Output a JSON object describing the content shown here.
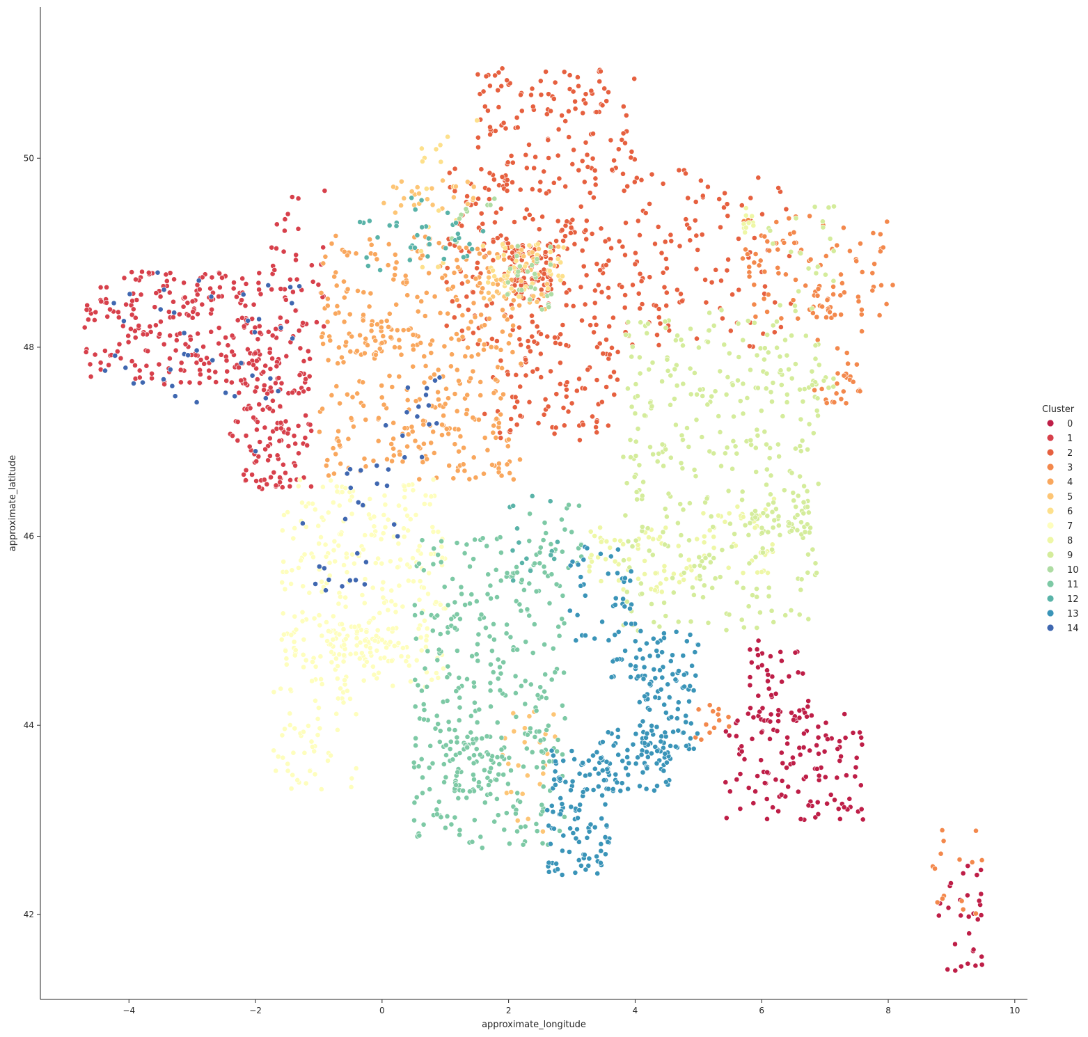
{
  "chart_data": {
    "type": "scatter",
    "title": "",
    "xlabel": "approximate_longitude",
    "ylabel": "approximate_latitude",
    "xlim": [
      -5.4,
      10.2
    ],
    "ylim": [
      41.1,
      51.6
    ],
    "xticks": [
      -4,
      -2,
      0,
      2,
      4,
      6,
      8,
      10
    ],
    "xtick_labels": [
      "−4",
      "−2",
      "0",
      "2",
      "4",
      "6",
      "8",
      "10"
    ],
    "yticks": [
      42,
      44,
      46,
      48,
      50
    ],
    "ytick_labels": [
      "42",
      "44",
      "46",
      "48",
      "50"
    ],
    "grid": false,
    "legend": {
      "title": "Cluster",
      "placement": "right",
      "entries": [
        "0",
        "1",
        "2",
        "3",
        "4",
        "5",
        "6",
        "7",
        "8",
        "9",
        "10",
        "11",
        "12",
        "13",
        "14"
      ]
    },
    "colors": [
      "#be1e47",
      "#d7404b",
      "#e6603f",
      "#f3884c",
      "#f9a75d",
      "#fdc575",
      "#fde08b",
      "#fefebd",
      "#eef7a6",
      "#d4ec9b",
      "#aedca3",
      "#7dc9a5",
      "#59b3a8",
      "#3a94b8",
      "#3f67b0"
    ],
    "series": [
      {
        "name": "0",
        "regions": [
          [
            5.4,
            43.0,
            7.6,
            44.2,
            120
          ],
          [
            5.6,
            44.0,
            6.8,
            44.9,
            45
          ],
          [
            8.8,
            41.4,
            9.5,
            42.7,
            30
          ]
        ],
        "points": [
          [
            6.9,
            43.7
          ],
          [
            6.5,
            43.6
          ],
          [
            5.9,
            43.3
          ],
          [
            7.2,
            43.75
          ],
          [
            5.5,
            43.3
          ]
        ]
      },
      {
        "name": "1",
        "regions": [
          [
            -4.7,
            47.6,
            -1.9,
            48.8,
            220
          ],
          [
            -2.2,
            46.5,
            -1.1,
            48.0,
            120
          ],
          [
            -1.8,
            48.2,
            -0.9,
            49.7,
            40
          ],
          [
            -2.5,
            47.0,
            -1.3,
            48.5,
            50
          ]
        ],
        "points": [
          [
            -3.4,
            48.7
          ],
          [
            -2.7,
            48.5
          ],
          [
            -1.6,
            47.2
          ],
          [
            -4.3,
            48.4
          ]
        ]
      },
      {
        "name": "2",
        "regions": [
          [
            1.0,
            48.0,
            4.8,
            49.9,
            280
          ],
          [
            1.6,
            47.0,
            3.8,
            48.1,
            90
          ],
          [
            1.5,
            49.9,
            4.0,
            50.95,
            110
          ],
          [
            4.8,
            48.0,
            6.5,
            49.8,
            60
          ],
          [
            2.0,
            48.5,
            2.7,
            49.1,
            80
          ]
        ],
        "points": [
          [
            2.35,
            48.85
          ],
          [
            3.05,
            50.6
          ],
          [
            1.9,
            50.95
          ]
        ]
      },
      {
        "name": "3",
        "regions": [
          [
            5.7,
            48.3,
            8.1,
            49.4,
            90
          ],
          [
            6.8,
            47.4,
            7.6,
            48.6,
            40
          ],
          [
            8.7,
            42.0,
            9.5,
            42.9,
            15
          ],
          [
            4.9,
            43.8,
            5.6,
            44.3,
            15
          ]
        ],
        "points": [
          [
            7.75,
            48.6
          ],
          [
            7.3,
            47.7
          ],
          [
            6.2,
            49.1
          ]
        ]
      },
      {
        "name": "4",
        "regions": [
          [
            -1.0,
            46.6,
            2.2,
            49.2,
            360
          ],
          [
            -0.3,
            47.9,
            0.6,
            48.3,
            30
          ]
        ],
        "points": [
          [
            0.2,
            48.0
          ],
          [
            -0.55,
            47.5
          ],
          [
            1.0,
            47.4
          ]
        ]
      },
      {
        "name": "5",
        "regions": [
          [
            0.0,
            49.4,
            1.5,
            49.8,
            25
          ],
          [
            1.9,
            42.8,
            2.8,
            44.2,
            25
          ],
          [
            1.6,
            48.4,
            2.8,
            49.1,
            35
          ]
        ],
        "points": [
          [
            0.3,
            49.5
          ],
          [
            2.2,
            48.7
          ]
        ]
      },
      {
        "name": "6",
        "regions": [
          [
            1.5,
            48.5,
            2.9,
            49.1,
            40
          ],
          [
            0.6,
            48.8,
            1.2,
            50.4,
            15
          ]
        ],
        "points": [
          [
            2.0,
            48.8
          ],
          [
            1.5,
            50.4
          ]
        ]
      },
      {
        "name": "7",
        "regions": [
          [
            -1.6,
            44.4,
            1.0,
            46.6,
            280
          ],
          [
            -1.8,
            43.3,
            -0.4,
            44.5,
            60
          ],
          [
            -0.9,
            44.6,
            0.2,
            45.1,
            60
          ]
        ],
        "points": [
          [
            -0.6,
            44.85
          ],
          [
            0.4,
            45.7
          ],
          [
            -1.2,
            46.1
          ]
        ]
      },
      {
        "name": "8",
        "regions": [
          [
            3.2,
            45.4,
            5.0,
            46.1,
            60
          ],
          [
            5.0,
            45.6,
            6.2,
            46.4,
            40
          ],
          [
            5.7,
            49.2,
            6.0,
            49.5,
            10
          ]
        ],
        "points": [
          [
            4.85,
            45.75
          ],
          [
            4.4,
            45.5
          ]
        ]
      },
      {
        "name": "9",
        "regions": [
          [
            3.8,
            45.0,
            6.9,
            48.4,
            330
          ],
          [
            5.8,
            46.0,
            6.8,
            46.4,
            40
          ],
          [
            6.0,
            47.5,
            7.2,
            49.5,
            40
          ]
        ],
        "points": [
          [
            5.9,
            46.2
          ],
          [
            6.8,
            47.6
          ],
          [
            4.0,
            47.3
          ]
        ]
      },
      {
        "name": "10",
        "regions": [
          [
            1.9,
            48.4,
            2.7,
            49.1,
            25
          ],
          [
            0.9,
            49.1,
            1.8,
            49.6,
            10
          ]
        ],
        "points": [
          [
            2.3,
            48.8
          ]
        ]
      },
      {
        "name": "11",
        "regions": [
          [
            0.5,
            42.7,
            2.9,
            46.0,
            330
          ],
          [
            1.0,
            43.3,
            1.9,
            43.9,
            50
          ],
          [
            2.3,
            45.6,
            3.2,
            46.4,
            20
          ]
        ],
        "points": [
          [
            1.45,
            43.6
          ],
          [
            0.9,
            44.8
          ],
          [
            2.3,
            43.9
          ]
        ]
      },
      {
        "name": "12",
        "regions": [
          [
            0.4,
            48.9,
            1.6,
            49.6,
            25
          ],
          [
            2.0,
            45.4,
            3.0,
            46.5,
            15
          ],
          [
            -0.4,
            48.8,
            0.3,
            49.4,
            10
          ]
        ],
        "points": [
          [
            1.2,
            49.2
          ]
        ]
      },
      {
        "name": "13",
        "regions": [
          [
            2.6,
            42.4,
            3.6,
            43.8,
            110
          ],
          [
            3.4,
            43.3,
            4.6,
            44.0,
            70
          ],
          [
            4.0,
            43.7,
            5.0,
            45.0,
            110
          ],
          [
            2.9,
            44.5,
            4.0,
            45.9,
            50
          ]
        ],
        "points": [
          [
            2.9,
            43.4
          ],
          [
            3.9,
            43.6
          ],
          [
            4.8,
            44.1
          ],
          [
            3.1,
            45.7
          ]
        ]
      },
      {
        "name": "14",
        "regions": [
          [
            -4.4,
            47.3,
            -1.3,
            48.8,
            40
          ],
          [
            -1.3,
            45.4,
            0.4,
            46.8,
            25
          ],
          [
            0.0,
            46.8,
            1.0,
            47.7,
            15
          ]
        ],
        "points": [
          [
            -2.0,
            46.9
          ],
          [
            -3.5,
            48.4
          ]
        ]
      }
    ]
  }
}
